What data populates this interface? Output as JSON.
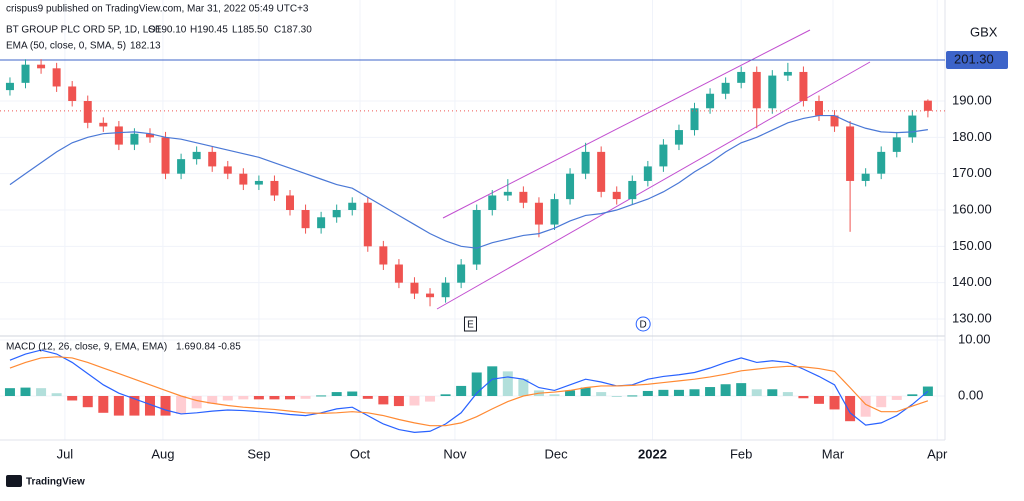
{
  "chart_data": {
    "type": "candlestick",
    "publisher": "crispus9 published on TradingView.com, Mar 31, 2022 05:49 UTC+3",
    "title": "BT GROUP PLC ORD 5P, 1D, LSE",
    "ohlc_labels": [
      "O190.10",
      "H190.45",
      "L185.50",
      "C187.30"
    ],
    "currency": "GBX",
    "footer": "TradingView",
    "colors": {
      "up": "#26a69a",
      "down": "#ef5350",
      "ema": "#4a78d6",
      "hline": "#3d64c9",
      "macd": "#2962ff",
      "signal": "#ff8a33",
      "hist_up_strong": "#26a69a",
      "hist_up_weak": "#b2dfdb",
      "hist_down_strong": "#ef5350",
      "hist_down_weak": "#ffcdd2",
      "last": "#ef5350"
    },
    "xlim": [
      -0.64,
      60.1
    ],
    "xticks": [
      {
        "value": 3.53,
        "label": "Jul"
      },
      {
        "value": 9.83,
        "label": "Aug"
      },
      {
        "value": 16.0,
        "label": "Sep"
      },
      {
        "value": 22.5,
        "label": "Oct"
      },
      {
        "value": 28.6,
        "label": "Nov"
      },
      {
        "value": 35.1,
        "label": "Dec"
      },
      {
        "value": 41.3,
        "label": "2022"
      },
      {
        "value": 47.0,
        "label": "Feb"
      },
      {
        "value": 52.9,
        "label": "Mar"
      },
      {
        "value": 59.6,
        "label": "Apr"
      }
    ],
    "ylim": [
      125.6,
      217.8
    ],
    "yticks": [
      {
        "value": 130,
        "label": "130.00"
      },
      {
        "value": 140,
        "label": "140.00"
      },
      {
        "value": 150,
        "label": "150.00"
      },
      {
        "value": 160,
        "label": "160.00"
      },
      {
        "value": 170,
        "label": "170.00"
      },
      {
        "value": 180,
        "label": "180.00"
      },
      {
        "value": 190,
        "label": "190.00"
      }
    ],
    "hline": {
      "value": 201.3,
      "label": "201.30"
    },
    "events": [
      {
        "label": "E",
        "x": 29.6
      },
      {
        "label": "D",
        "x": 40.7
      }
    ],
    "open": [
      193,
      195,
      200,
      199,
      194,
      190,
      184,
      183,
      178,
      181,
      180,
      170,
      174,
      176,
      172,
      170,
      167,
      168,
      164,
      160,
      155,
      158,
      160,
      162,
      150,
      145,
      140,
      137,
      136,
      140,
      145,
      160,
      164,
      165,
      162,
      156,
      163,
      170,
      176,
      165,
      163,
      168,
      172,
      178,
      182,
      188,
      192,
      195,
      198,
      188,
      197,
      198,
      190,
      186,
      183,
      168,
      170,
      176,
      180,
      190.1
    ],
    "high": [
      196.5,
      201.5,
      201.5,
      200.5,
      195.5,
      191.5,
      185.5,
      184.5,
      182.5,
      182.5,
      181.5,
      175.5,
      177.5,
      177.5,
      173.5,
      171.5,
      169.5,
      169.5,
      165.5,
      161.5,
      159.5,
      161.5,
      163.5,
      163.5,
      151.5,
      146.5,
      141.5,
      138.5,
      141.5,
      146.5,
      161.5,
      165.5,
      168.5,
      166.5,
      163.5,
      164.5,
      171.5,
      178.5,
      177.5,
      166.5,
      169.5,
      173.5,
      179.5,
      183.5,
      189.5,
      193.5,
      196.5,
      199.5,
      199.5,
      198.5,
      200.5,
      199.5,
      191.5,
      187.5,
      184.5,
      171.5,
      177.5,
      181.5,
      187.5,
      190.45
    ],
    "low": [
      191.5,
      193.5,
      197.5,
      192.5,
      188.5,
      182.5,
      181.5,
      176.5,
      176.5,
      178.5,
      168.5,
      168.5,
      172.5,
      170.5,
      168.5,
      165.5,
      165.5,
      162.5,
      158.5,
      153.5,
      153.5,
      156.5,
      158.5,
      148.5,
      143.5,
      138.5,
      135.5,
      133.5,
      134.5,
      138.5,
      143.5,
      158.5,
      162.5,
      160.5,
      152.5,
      154.5,
      161.5,
      168.5,
      163.5,
      161.5,
      161.5,
      166.5,
      170.5,
      176.5,
      180.5,
      186.5,
      190.5,
      193.5,
      182.5,
      186.5,
      195.5,
      188.5,
      184.5,
      181.5,
      154,
      166.5,
      168.5,
      174.5,
      178.5,
      185.5
    ],
    "close": [
      195,
      200,
      199,
      194,
      190,
      184,
      183,
      178,
      181,
      180,
      170,
      174,
      176,
      172,
      170,
      167,
      168,
      164,
      160,
      155,
      158,
      160,
      162,
      150,
      145,
      140,
      137,
      136,
      140,
      145,
      160,
      164,
      165,
      162,
      156,
      163,
      170,
      176,
      165,
      163,
      168,
      172,
      178,
      182,
      188,
      192,
      195,
      198,
      188,
      197,
      198,
      190,
      186,
      183,
      168,
      170,
      176,
      180,
      186,
      187.3
    ],
    "ema": {
      "name": "EMA (50, close, 0, SMA, 5)",
      "value_label": "182.13",
      "values": [
        167,
        170,
        173,
        176,
        178.5,
        180,
        181,
        181.3,
        181.5,
        181,
        180,
        179.5,
        178.5,
        177.5,
        176.5,
        175.5,
        174.5,
        173,
        171.5,
        170,
        168.5,
        167,
        166,
        163.5,
        161,
        158.5,
        156,
        153.5,
        151.5,
        150,
        149.5,
        151,
        152,
        153,
        153.5,
        155,
        157,
        158.5,
        159,
        160,
        161.5,
        163,
        165,
        167.5,
        170.5,
        173,
        176,
        178.5,
        180,
        182,
        184,
        185.2,
        186,
        186,
        184,
        182.5,
        181.5,
        181.3,
        181.5,
        182.13
      ]
    },
    "macd_pane": {
      "name": "MACD (12, 26, close, 9, EMA, EMA)",
      "value_labels": [
        "1.69",
        "0.84",
        "-0.85"
      ],
      "ylim": [
        -7.86,
        10.54
      ],
      "yticks": [
        {
          "value": 10,
          "label": "10.00"
        },
        {
          "value": 0,
          "label": "0.00"
        }
      ],
      "macd": [
        6.4,
        7.5,
        8.2,
        7.5,
        6,
        4,
        2,
        0.5,
        -0.5,
        -1.5,
        -2.5,
        -3.2,
        -3,
        -2.7,
        -2.5,
        -2.6,
        -2.8,
        -3,
        -3.3,
        -3.5,
        -3,
        -2.3,
        -2,
        -3.5,
        -5,
        -6,
        -6.5,
        -6.3,
        -5,
        -3,
        0.5,
        3,
        3.4,
        3,
        1.5,
        1,
        2,
        3,
        2.5,
        1.8,
        2,
        3,
        3.5,
        3.8,
        4.2,
        5,
        6,
        6.8,
        6,
        6.3,
        6,
        4.8,
        3.5,
        2,
        -3,
        -5.2,
        -4.8,
        -3.5,
        -1.5,
        0.84
      ],
      "signal": [
        5,
        6,
        6.8,
        7,
        6.8,
        6,
        5,
        4,
        3,
        2,
        1,
        0,
        -0.8,
        -1.3,
        -1.7,
        -2,
        -2.2,
        -2.4,
        -2.7,
        -3,
        -3.1,
        -3,
        -2.8,
        -3,
        -3.5,
        -4.2,
        -4.8,
        -5.3,
        -5.3,
        -4.8,
        -3.7,
        -2.3,
        -1,
        0,
        0.5,
        0.7,
        1,
        1.5,
        1.8,
        1.8,
        1.9,
        2.1,
        2.4,
        2.7,
        3,
        3.4,
        3.9,
        4.5,
        4.8,
        5.1,
        5.3,
        5.2,
        4.9,
        4.4,
        1.5,
        -1.5,
        -2.8,
        -2.8,
        -1.8,
        -0.85
      ],
      "hist": [
        1.4,
        1.5,
        1.4,
        0.5,
        -0.8,
        -2,
        -3,
        -3.5,
        -3.5,
        -3.5,
        -3.5,
        -3.2,
        -2.2,
        -1.4,
        -0.8,
        -0.6,
        -0.6,
        -0.6,
        -0.6,
        -0.5,
        0.1,
        0.7,
        0.8,
        -0.5,
        -1.5,
        -1.8,
        -1.7,
        -1,
        0.3,
        1.8,
        4.2,
        5.3,
        4.4,
        3,
        1,
        0.3,
        1,
        1.5,
        0.7,
        0,
        0.1,
        0.9,
        1.1,
        1.1,
        1.2,
        1.6,
        2.1,
        2.3,
        1.2,
        1.2,
        0.7,
        -0.4,
        -1.4,
        -2.4,
        -4.5,
        -3.7,
        -2,
        -0.7,
        0.3,
        1.69
      ]
    }
  }
}
